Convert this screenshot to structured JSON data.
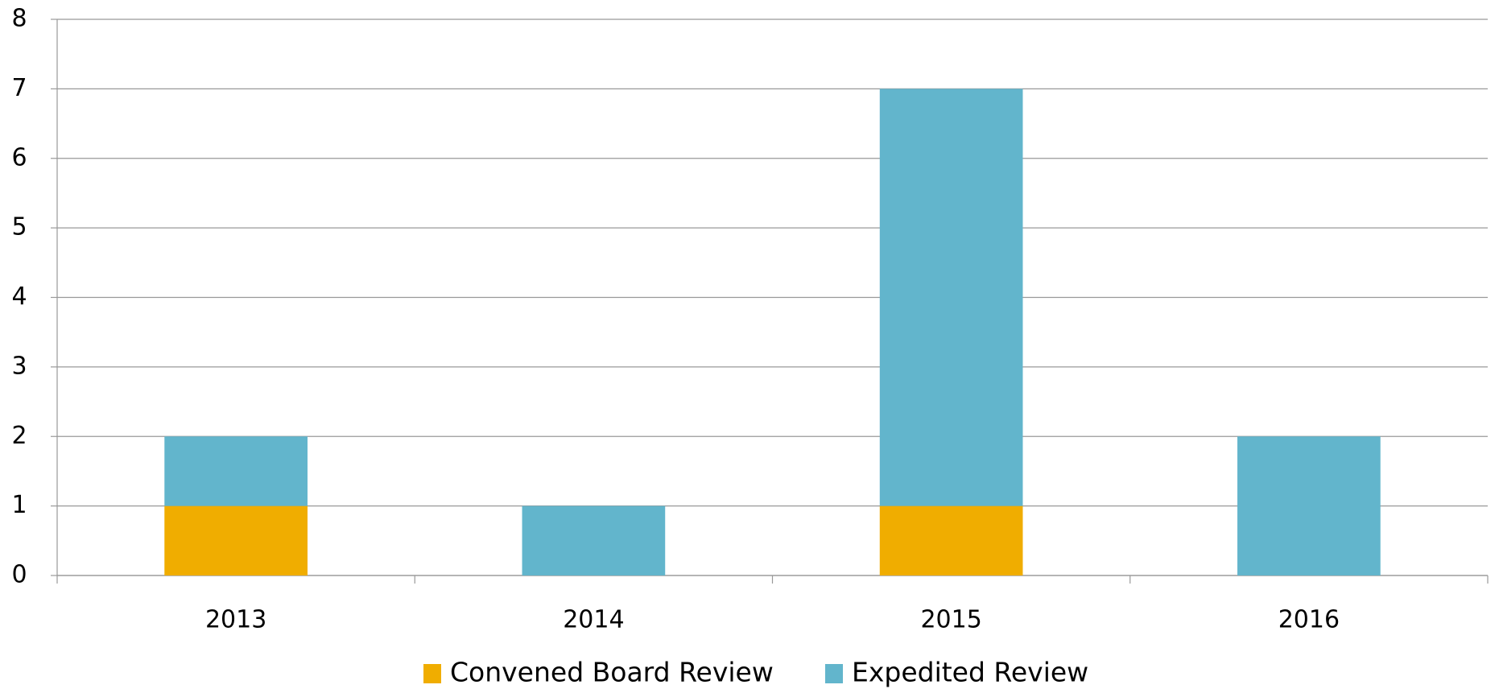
{
  "chart_data": {
    "type": "stacked_bar",
    "categories": [
      "2013",
      "2014",
      "2015",
      "2016"
    ],
    "series": [
      {
        "name": "Convened Board Review",
        "color": "#f0ad00",
        "values": [
          1,
          0,
          1,
          0
        ]
      },
      {
        "name": "Expedited Review",
        "color": "#62b5cc",
        "values": [
          1,
          1,
          6,
          2
        ]
      }
    ],
    "ylim": [
      0,
      8
    ],
    "yticks": [
      0,
      1,
      2,
      3,
      4,
      5,
      6,
      7,
      8
    ],
    "grid": true,
    "legend": "bottom"
  }
}
